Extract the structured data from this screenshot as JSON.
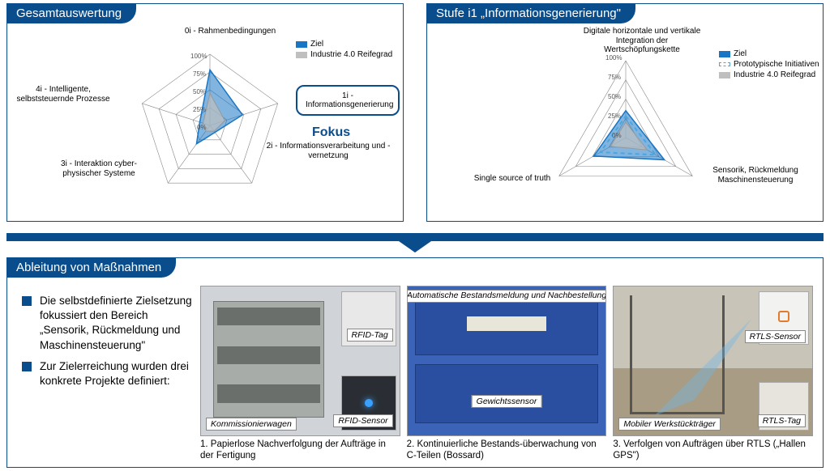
{
  "colors": {
    "brand": "#0a4d8c",
    "ziel_fill": "#1976c4",
    "ziel_fill_op": 0.55,
    "reife_fill": "#bfbfbf",
    "reife_fill_op": 0.7,
    "proto_stroke": "#4ba6e0",
    "grid": "#888"
  },
  "left": {
    "title": "Gesamtauswertung",
    "type": "radar",
    "ticks": [
      "0%",
      "25%",
      "50%",
      "75%",
      "100%"
    ],
    "axes": [
      "0i - Rahmenbedingungen",
      "1i - Informationsgenerierung",
      "2i - Informationsverarbeitung und -vernetzung",
      "3i - Interaktion cyber-physischer Systeme",
      "4i - Intelligente, selbststeuernde Prozesse"
    ],
    "series": [
      {
        "name": "Ziel",
        "values": [
          78,
          48,
          12,
          32,
          15
        ],
        "kind": "ziel"
      },
      {
        "name": "Industrie 4.0 Reifegrad",
        "values": [
          45,
          22,
          10,
          10,
          10
        ],
        "kind": "reife"
      }
    ],
    "fokus_text": "Fokus",
    "legend": [
      "Ziel",
      "Industrie 4.0 Reifegrad"
    ]
  },
  "right": {
    "title": "Stufe i1 „Informationsgenerierung\"",
    "type": "radar",
    "ticks": [
      "0%",
      "25%",
      "50%",
      "75%",
      "100%"
    ],
    "axes": [
      "Digitale horizontale und vertikale Integration der Wertschöpfungskette",
      "Sensorik, Rückmeldung Maschinensteuerung",
      "Single source of truth"
    ],
    "series": [
      {
        "name": "Ziel",
        "values": [
          35,
          58,
          48
        ],
        "kind": "ziel"
      },
      {
        "name": "Prototypische Initiativen",
        "values": [
          28,
          45,
          38
        ],
        "kind": "proto"
      },
      {
        "name": "Industrie 4.0 Reifegrad",
        "values": [
          20,
          32,
          23
        ],
        "kind": "reife"
      }
    ],
    "legend": [
      "Ziel",
      "Prototypische Initiativen",
      "Industrie 4.0 Reifegrad"
    ]
  },
  "bottom": {
    "title": "Ableitung von Maßnahmen",
    "bullets": [
      "Die selbstdefinierte Zielsetzung fokussiert den Bereich „Sensorik, Rückmeldung und Maschinensteuerung\"",
      "Zur Zielerreichung wurden drei konkrete Projekte definiert:"
    ],
    "projects": [
      {
        "caption": "1. Papierlose Nachverfolgung der Aufträge in der Fertigung",
        "labels": [
          "Kommissionierwagen",
          "RFID-Tag",
          "RFID-Sensor"
        ]
      },
      {
        "caption": "2. Kontinuierliche Bestands-überwachung von C-Teilen (Bossard)",
        "labels": [
          "Automatische Bestandsmeldung und Nachbestellung",
          "Gewichtssensor"
        ]
      },
      {
        "caption": "3. Verfolgen von Aufträgen über RTLS („Hallen GPS\")",
        "labels": [
          "Mobiler Werkstückträger",
          "RTLS-Sensor",
          "RTLS-Tag"
        ]
      }
    ]
  }
}
